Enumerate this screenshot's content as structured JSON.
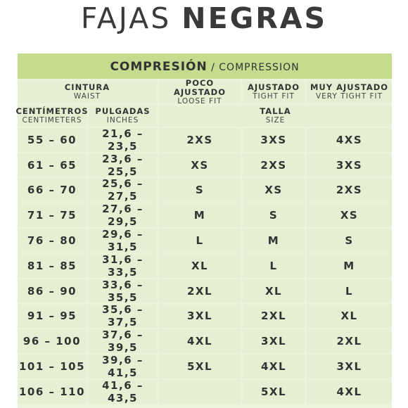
{
  "title": {
    "light": "FAJAS",
    "bold": "NEGRAS"
  },
  "compression": {
    "es": "COMPRESIÓN",
    "en": "/ COMPRESSION"
  },
  "headers": {
    "cintura": {
      "es": "CINTURA",
      "en": "WAIST"
    },
    "poco": {
      "es": "POCO AJUSTADO",
      "en": "LOOSE FIT"
    },
    "ajustado": {
      "es": "AJUSTADO",
      "en": "TIGHT FIT"
    },
    "muy": {
      "es": "MUY AJUSTADO",
      "en": "VERY TIGHT FIT"
    },
    "cm": {
      "es": "CENTÍMETROS",
      "en": "CENTIMETERS"
    },
    "in": {
      "es": "PULGADAS",
      "en": "INCHES"
    },
    "talla": {
      "es": "TALLA",
      "en": "SIZE"
    }
  },
  "rows": [
    {
      "cm": "55 – 60",
      "in": "21,6 – 23,5",
      "loose": "2XS",
      "tight": "3XS",
      "very": "4XS"
    },
    {
      "cm": "61 – 65",
      "in": "23,6 – 25,5",
      "loose": "XS",
      "tight": "2XS",
      "very": "3XS"
    },
    {
      "cm": "66 – 70",
      "in": "25,6 – 27,5",
      "loose": "S",
      "tight": "XS",
      "very": "2XS"
    },
    {
      "cm": "71 – 75",
      "in": "27,6 – 29,5",
      "loose": "M",
      "tight": "S",
      "very": "XS"
    },
    {
      "cm": "76 – 80",
      "in": "29,6 – 31,5",
      "loose": "L",
      "tight": "M",
      "very": "S"
    },
    {
      "cm": "81 – 85",
      "in": "31,6 – 33,5",
      "loose": "XL",
      "tight": "L",
      "very": "M"
    },
    {
      "cm": "86 – 90",
      "in": "33,6 – 35,5",
      "loose": "2XL",
      "tight": "XL",
      "very": "L"
    },
    {
      "cm": "91 – 95",
      "in": "35,6 – 37,5",
      "loose": "3XL",
      "tight": "2XL",
      "very": "XL"
    },
    {
      "cm": "96 – 100",
      "in": "37,6 – 39,5",
      "loose": "4XL",
      "tight": "3XL",
      "very": "2XL"
    },
    {
      "cm": "101 – 105",
      "in": "39,6 – 41,5",
      "loose": "5XL",
      "tight": "4XL",
      "very": "3XL"
    },
    {
      "cm": "106 – 110",
      "in": "41,6 – 43,5",
      "loose": "",
      "tight": "5XL",
      "very": "4XL"
    }
  ],
  "colors": {
    "header_band": "#c5dc8f",
    "cell_bg": "#e5efd2",
    "grid": "#ffffff"
  }
}
